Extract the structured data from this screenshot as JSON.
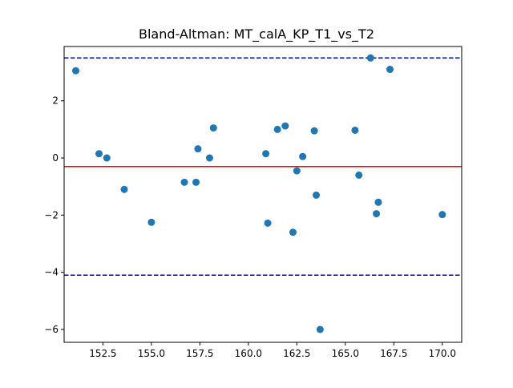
{
  "chart_data": {
    "type": "scatter",
    "title": "Bland-Altman: MT_calA_KP_T1_vs_T2",
    "xlabel": "",
    "ylabel": "",
    "xlim": [
      150.5,
      171.0
    ],
    "ylim": [
      -6.45,
      3.9
    ],
    "x_ticks": [
      152.5,
      155.0,
      157.5,
      160.0,
      162.5,
      165.0,
      167.5,
      170.0
    ],
    "x_tick_labels": [
      "152.5",
      "155.0",
      "157.5",
      "160.0",
      "162.5",
      "165.0",
      "167.5",
      "170.0"
    ],
    "y_ticks": [
      2,
      0,
      -2,
      -4,
      -6
    ],
    "y_tick_labels": [
      "2",
      "0",
      "−2",
      "−4",
      "−6"
    ],
    "grid": false,
    "mean_line": -0.3,
    "upper_limit": 3.5,
    "lower_limit": -4.1,
    "colors": {
      "points": "#1f77b4",
      "mean_line": "#ff0000",
      "limit_lines": "#0000cc"
    },
    "points": [
      [
        151.1,
        3.05
      ],
      [
        152.3,
        0.15
      ],
      [
        152.7,
        0.0
      ],
      [
        153.6,
        -1.1
      ],
      [
        155.0,
        -2.25
      ],
      [
        156.7,
        -0.85
      ],
      [
        157.3,
        -0.85
      ],
      [
        157.4,
        0.32
      ],
      [
        158.0,
        0.0
      ],
      [
        158.2,
        1.05
      ],
      [
        160.9,
        0.15
      ],
      [
        161.0,
        -2.28
      ],
      [
        161.5,
        1.0
      ],
      [
        161.9,
        1.12
      ],
      [
        162.3,
        -2.6
      ],
      [
        162.5,
        -0.45
      ],
      [
        162.8,
        0.05
      ],
      [
        163.4,
        0.95
      ],
      [
        163.5,
        -1.3
      ],
      [
        163.7,
        -6.0
      ],
      [
        165.5,
        0.97
      ],
      [
        165.7,
        -0.6
      ],
      [
        166.3,
        3.5
      ],
      [
        166.6,
        -1.95
      ],
      [
        166.7,
        -1.55
      ],
      [
        167.3,
        3.1
      ],
      [
        170.0,
        -1.98
      ]
    ]
  }
}
